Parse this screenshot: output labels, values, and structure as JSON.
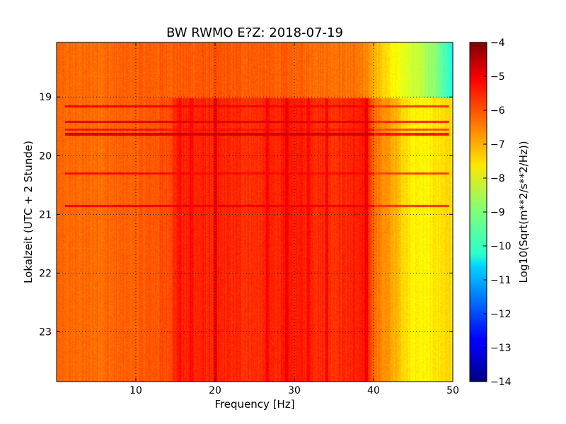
{
  "chart_data": {
    "type": "heatmap",
    "title": "BW RWMO E?Z: 2018-07-19",
    "xlabel": "Frequency [Hz]",
    "ylabel": "Lokalzeit (UTC + 2 Stunde)",
    "xlim": [
      0,
      50
    ],
    "ylim": [
      18.07,
      23.85
    ],
    "y_inverted": true,
    "x_ticks": [
      10,
      20,
      30,
      40,
      50
    ],
    "y_ticks": [
      19,
      20,
      21,
      22,
      23
    ],
    "grid": true,
    "colormap": "jet",
    "colorbar": {
      "label": "Log10(Sqrt(m**2/s**2/Hz))",
      "range": [
        -14,
        -4
      ],
      "ticks": [
        -4,
        -5,
        -6,
        -7,
        -8,
        -9,
        -10,
        -11,
        -12,
        -13,
        -14
      ]
    },
    "frequency_profile": {
      "before_19h": {
        "freq_hz": [
          0,
          5,
          10,
          20,
          30,
          38,
          40,
          42,
          44,
          46,
          48,
          49,
          50
        ],
        "level": [
          -6.3,
          -6.3,
          -6.2,
          -6.1,
          -6.2,
          -6.4,
          -6.9,
          -7.6,
          -8.0,
          -8.4,
          -9.0,
          -9.6,
          -10.0
        ]
      },
      "after_19h": {
        "freq_hz": [
          0,
          5,
          10,
          14,
          15,
          20,
          25,
          30,
          35,
          39,
          40,
          41,
          42,
          43,
          44,
          45,
          46,
          47,
          48,
          50
        ],
        "level": [
          -6.3,
          -6.3,
          -6.2,
          -6.0,
          -5.6,
          -5.6,
          -5.7,
          -5.5,
          -5.7,
          -5.5,
          -6.2,
          -6.6,
          -6.8,
          -7.1,
          -7.4,
          -7.6,
          -7.7,
          -7.6,
          -7.5,
          -7.4
        ]
      },
      "spectral_lines": [
        {
          "freq_hz": 15.5,
          "level": -5.4
        },
        {
          "freq_hz": 17,
          "level": -5.3
        },
        {
          "freq_hz": 20,
          "level": -5.2
        },
        {
          "freq_hz": 26.5,
          "level": -5.3
        },
        {
          "freq_hz": 29,
          "level": -5.2
        },
        {
          "freq_hz": 31.8,
          "level": -5.3
        },
        {
          "freq_hz": 34,
          "level": -5.3
        },
        {
          "freq_hz": 39,
          "level": -5.2
        }
      ],
      "time_bands": [
        {
          "time": 19.15,
          "level": -5.2
        },
        {
          "time": 19.42,
          "level": -5.0
        },
        {
          "time": 19.63,
          "level": -4.8
        },
        {
          "time": 19.55,
          "level": -5.4
        },
        {
          "time": 20.3,
          "level": -5.3
        },
        {
          "time": 20.85,
          "level": -5.1
        }
      ]
    }
  }
}
